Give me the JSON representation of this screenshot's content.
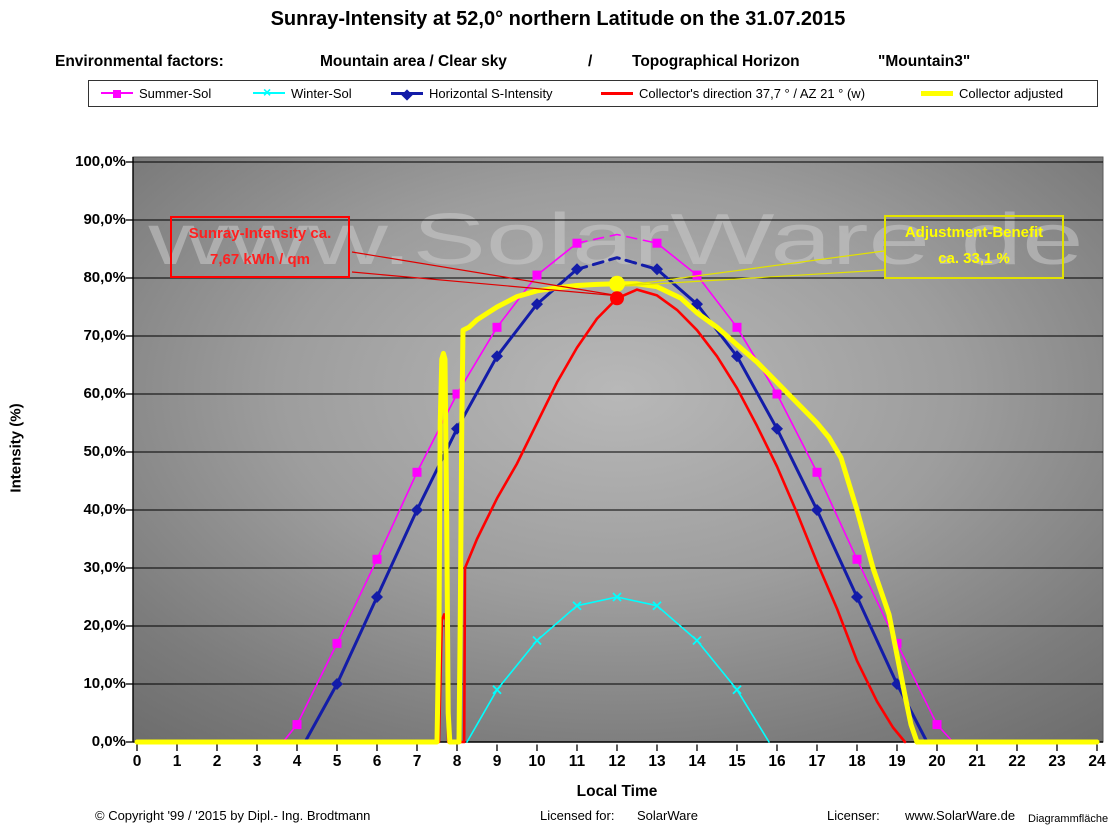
{
  "title": "Sunray-Intensity at  52,0° northern Latitude on the  31.07.2015",
  "subtitle": {
    "label": "Environmental factors:",
    "area": "Mountain area / Clear sky",
    "sep": "/",
    "horizon": "Topographical Horizon",
    "profile": "\"Mountain3\""
  },
  "watermark": "www.SolarWare.de",
  "legend": [
    {
      "label": "Summer-Sol",
      "color": "#FF00FF",
      "marker": "square",
      "line_width": 2
    },
    {
      "label": "Winter-Sol",
      "color": "#00FFFF",
      "marker": "x",
      "line_width": 2
    },
    {
      "label": "Horizontal S-Intensity",
      "color": "#131CA8",
      "marker": "diamond",
      "line_width": 3
    },
    {
      "label": "Collector's direction  37,7 ° / AZ 21 ° (w)",
      "color": "#FF0000",
      "marker": "none",
      "line_width": 3
    },
    {
      "label": "Collector adjusted",
      "color": "#FFFF00",
      "marker": "none",
      "line_width": 5
    }
  ],
  "annotations": {
    "sunray": {
      "line1": "Sunray-Intensity ca.",
      "line2": "7,67  kWh / qm",
      "color": "#FF2020",
      "border": "#FF0000"
    },
    "benefit": {
      "line1": "Adjustment-Benefit",
      "line2": "ca. 33,1 %",
      "color": "#FFFF00",
      "border": "#E2E200"
    }
  },
  "footer": {
    "copyright": "© Copyright '99 / '2015 by  Dipl.- Ing. Brodtmann",
    "licensed_label": "Licensed for:",
    "licensed_value": "SolarWare",
    "licenser_label": "Licenser:",
    "licenser_value": "www.SolarWare.de",
    "corner": "Diagrammfläche"
  },
  "chart_data": {
    "type": "line",
    "xlabel": "Local Time",
    "ylabel": "Intensity (%)",
    "xlim": [
      0,
      24
    ],
    "ylim": [
      0,
      100
    ],
    "grid": true,
    "legend_position": "top",
    "x_ticks": [
      "0",
      "1",
      "2",
      "3",
      "4",
      "5",
      "6",
      "7",
      "8",
      "9",
      "10",
      "11",
      "12",
      "13",
      "14",
      "15",
      "16",
      "17",
      "18",
      "19",
      "20",
      "21",
      "22",
      "23",
      "24"
    ],
    "y_ticks": [
      "0,0%",
      "10,0%",
      "20,0%",
      "30,0%",
      "40,0%",
      "50,0%",
      "60,0%",
      "70,0%",
      "80,0%",
      "90,0%",
      "100,0%"
    ],
    "series": [
      {
        "name": "Summer-Sol",
        "color": "#FF00FF",
        "marker": "square",
        "line_width": 1.6,
        "dash_range": [
          11,
          13
        ],
        "markers_at": [
          4,
          5,
          6,
          7,
          8,
          9,
          10,
          11,
          13,
          14,
          15,
          16,
          17,
          18,
          19,
          20
        ],
        "points": [
          [
            3.65,
            0
          ],
          [
            4,
            3
          ],
          [
            5,
            17
          ],
          [
            6,
            31.5
          ],
          [
            7,
            46.5
          ],
          [
            8,
            60
          ],
          [
            9,
            71.5
          ],
          [
            10,
            80.5
          ],
          [
            11,
            86
          ],
          [
            12,
            87.5
          ],
          [
            13,
            86
          ],
          [
            14,
            80.5
          ],
          [
            15,
            71.5
          ],
          [
            16,
            60
          ],
          [
            17,
            46.5
          ],
          [
            18,
            31.5
          ],
          [
            19,
            17
          ],
          [
            20,
            3
          ],
          [
            20.4,
            0
          ]
        ]
      },
      {
        "name": "Winter-Sol",
        "color": "#00FFFF",
        "marker": "x",
        "line_width": 1.6,
        "markers_at": [
          9,
          10,
          11,
          12,
          13,
          14,
          15
        ],
        "points": [
          [
            8.25,
            0
          ],
          [
            9,
            9
          ],
          [
            10,
            17.5
          ],
          [
            11,
            23.5
          ],
          [
            12,
            25
          ],
          [
            13,
            23.5
          ],
          [
            14,
            17.5
          ],
          [
            15,
            9
          ],
          [
            15.8,
            0
          ]
        ]
      },
      {
        "name": "Horizontal S-Intensity",
        "color": "#131CA8",
        "marker": "diamond",
        "line_width": 3,
        "dash_range": [
          11,
          13
        ],
        "markers_at": [
          5,
          6,
          7,
          8,
          9,
          10,
          11,
          13,
          14,
          15,
          16,
          17,
          18,
          19
        ],
        "points": [
          [
            4.2,
            0
          ],
          [
            5,
            10
          ],
          [
            6,
            25
          ],
          [
            7,
            40
          ],
          [
            8,
            54
          ],
          [
            9,
            66.5
          ],
          [
            10,
            75.5
          ],
          [
            11,
            81.5
          ],
          [
            12,
            83.5
          ],
          [
            13,
            81.5
          ],
          [
            14,
            75.5
          ],
          [
            15,
            66.5
          ],
          [
            16,
            54
          ],
          [
            17,
            40
          ],
          [
            18,
            25
          ],
          [
            19,
            10
          ],
          [
            19.75,
            0
          ]
        ]
      },
      {
        "name": "Collector's direction  37,7 ° / AZ 21 ° (w)",
        "color": "#FF0000",
        "marker": "none",
        "line_width": 2.6,
        "points": [
          [
            7.55,
            0
          ],
          [
            7.62,
            21
          ],
          [
            7.68,
            22
          ],
          [
            7.72,
            21
          ],
          [
            7.78,
            0
          ],
          [
            8.18,
            0
          ],
          [
            8.2,
            30
          ],
          [
            8.5,
            35
          ],
          [
            9,
            42
          ],
          [
            9.5,
            48
          ],
          [
            10,
            55
          ],
          [
            10.5,
            62
          ],
          [
            11,
            68
          ],
          [
            11.5,
            73
          ],
          [
            12,
            76.5
          ],
          [
            12.5,
            78
          ],
          [
            13,
            77
          ],
          [
            13.5,
            74.5
          ],
          [
            14,
            71
          ],
          [
            14.5,
            66.5
          ],
          [
            15,
            61
          ],
          [
            15.5,
            54.5
          ],
          [
            16,
            47.5
          ],
          [
            16.5,
            39.5
          ],
          [
            17,
            31
          ],
          [
            17.5,
            23
          ],
          [
            18,
            14
          ],
          [
            18.5,
            7
          ],
          [
            18.9,
            2.5
          ],
          [
            19.2,
            0
          ]
        ]
      },
      {
        "name": "Collector adjusted",
        "color": "#FFFF00",
        "marker": "none",
        "line_width": 5,
        "points": [
          [
            0,
            0
          ],
          [
            7.5,
            0
          ],
          [
            7.55,
            20
          ],
          [
            7.58,
            55
          ],
          [
            7.62,
            66
          ],
          [
            7.66,
            67
          ],
          [
            7.7,
            66
          ],
          [
            7.74,
            40
          ],
          [
            7.78,
            5
          ],
          [
            7.82,
            0
          ],
          [
            8.05,
            0
          ],
          [
            8.08,
            20
          ],
          [
            8.12,
            55
          ],
          [
            8.15,
            71
          ],
          [
            8.3,
            71.5
          ],
          [
            8.5,
            72.8
          ],
          [
            9,
            75
          ],
          [
            9.5,
            76.8
          ],
          [
            10,
            77.8
          ],
          [
            10.5,
            78.3
          ],
          [
            11,
            78.7
          ],
          [
            11.5,
            78.9
          ],
          [
            12,
            79
          ],
          [
            12.5,
            79
          ],
          [
            13,
            78.5
          ],
          [
            13.3,
            77.5
          ],
          [
            13.6,
            76.5
          ],
          [
            14,
            74
          ],
          [
            14.5,
            71.5
          ],
          [
            15,
            68.5
          ],
          [
            15.5,
            65.5
          ],
          [
            16,
            62
          ],
          [
            16.5,
            58.5
          ],
          [
            17,
            55
          ],
          [
            17.3,
            52.5
          ],
          [
            17.6,
            49
          ],
          [
            18,
            40
          ],
          [
            18.4,
            30
          ],
          [
            18.8,
            22
          ],
          [
            19,
            15
          ],
          [
            19.2,
            8
          ],
          [
            19.35,
            3
          ],
          [
            19.5,
            0
          ],
          [
            24,
            0
          ]
        ]
      }
    ],
    "highlight_points": [
      {
        "x": 12,
        "y": 79,
        "color": "#FFFF00",
        "r": 8
      },
      {
        "x": 12,
        "y": 76.5,
        "color": "#FF0000",
        "r": 7
      }
    ],
    "leader_lines": [
      {
        "color": "#E00000",
        "from": [
          352,
          252
        ],
        "to": [
          620,
          296
        ]
      },
      {
        "color": "#E00000",
        "from": [
          352,
          272
        ],
        "to": [
          620,
          296
        ]
      },
      {
        "color": "#E2E200",
        "from": [
          884,
          251
        ],
        "to": [
          621,
          286
        ]
      },
      {
        "color": "#E2E200",
        "from": [
          884,
          270
        ],
        "to": [
          621,
          286
        ]
      }
    ]
  }
}
